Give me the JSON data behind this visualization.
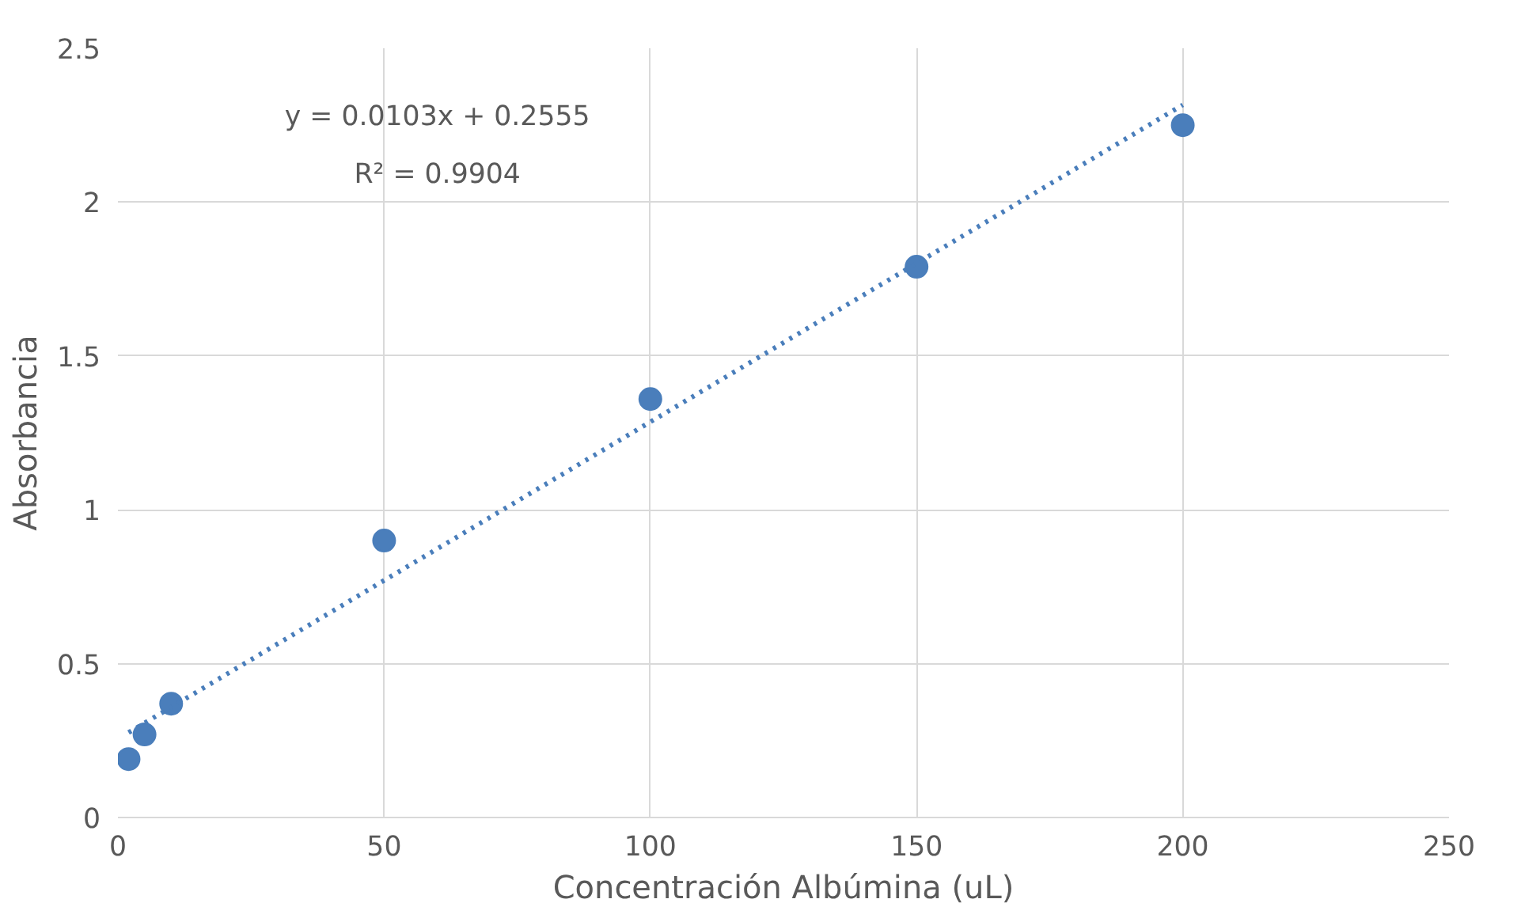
{
  "chart_data": {
    "type": "scatter",
    "xlabel": "Concentración Albúmina (uL)",
    "ylabel": "Absorbancia",
    "xlim": [
      0,
      250
    ],
    "xticks": [
      0,
      50,
      100,
      150,
      200,
      250
    ],
    "ylim": [
      0,
      2.5
    ],
    "yticks": [
      0,
      {
        "value": 0.5,
        "label": "0.5"
      },
      1,
      {
        "value": 1.5,
        "label": "1.5"
      },
      2,
      {
        "value": 2.5,
        "label": "2.5"
      }
    ],
    "grid": true,
    "marker": "circle",
    "x": [
      2,
      5,
      10,
      50,
      100,
      150,
      200
    ],
    "series": [
      {
        "color": "#4a7ebb",
        "values": [
          0.19,
          0.27,
          0.37,
          0.9,
          1.36,
          1.79,
          2.25
        ]
      },
      {
        "type": "line",
        "line_style": "dotted",
        "marker": "none",
        "color": "#4a7ebb",
        "x": [
          2,
          200
        ],
        "values": [
          0.276,
          2.316
        ]
      }
    ],
    "annotations": [
      "y = 0.0103x + 0.2555",
      "R² = 0.9904"
    ]
  }
}
